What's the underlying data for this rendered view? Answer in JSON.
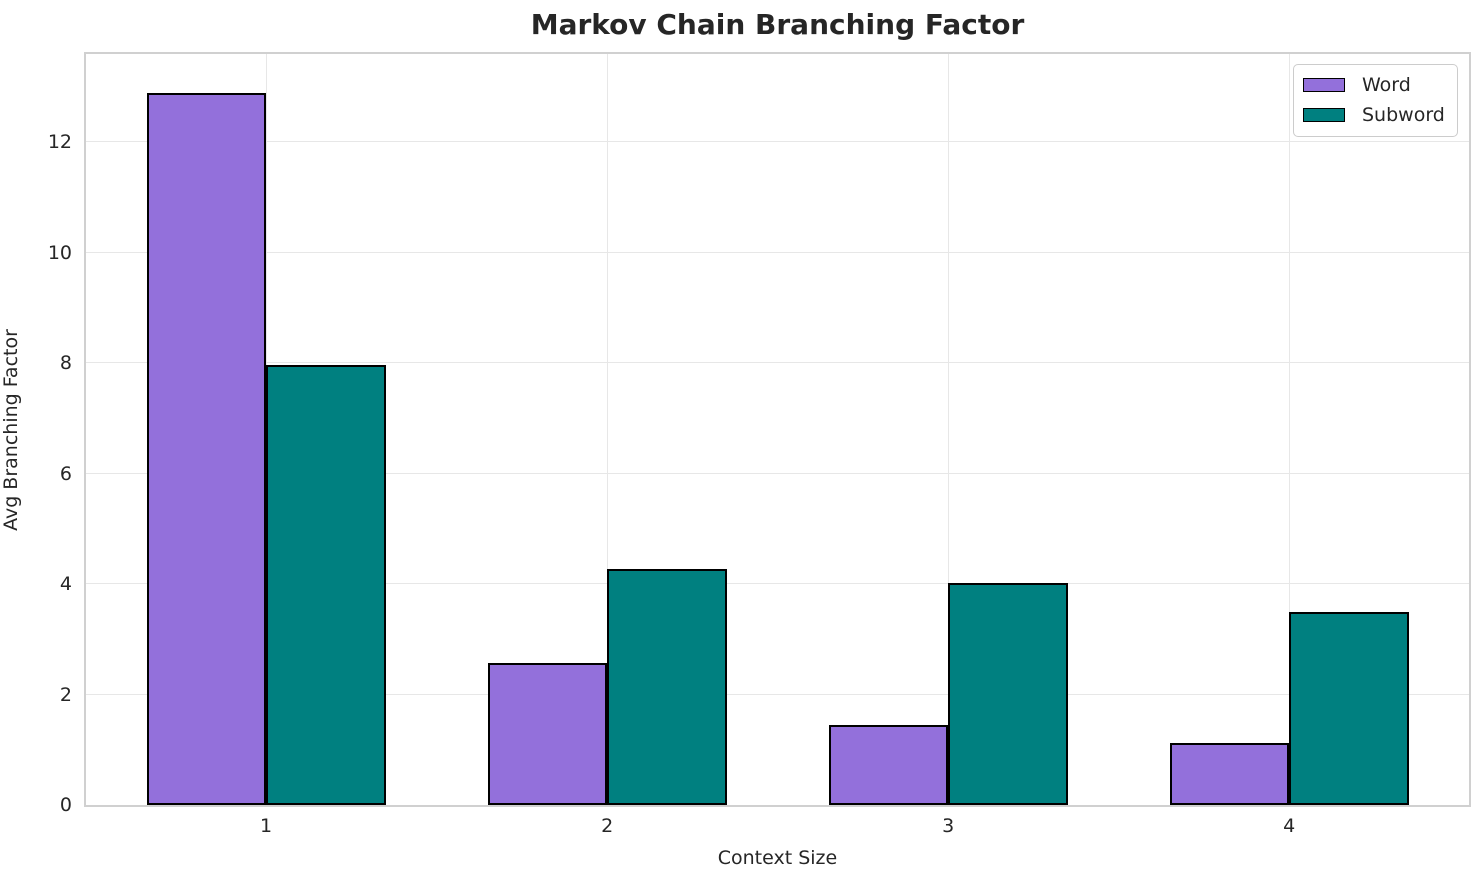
{
  "chart_data": {
    "type": "bar",
    "title": "Markov Chain Branching Factor",
    "xlabel": "Context Size",
    "ylabel": "Avg Branching Factor",
    "categories": [
      "1",
      "2",
      "3",
      "4"
    ],
    "series": [
      {
        "name": "Word",
        "color": "#9370DB",
        "values": [
          12.9,
          2.58,
          1.45,
          1.13
        ]
      },
      {
        "name": "Subword",
        "color": "#008080",
        "values": [
          7.97,
          4.28,
          4.02,
          3.5
        ]
      }
    ],
    "bar_edge_color": "#000000",
    "ylim": [
      0,
      13.6
    ],
    "yticks": [
      0,
      2,
      4,
      6,
      8,
      10,
      12
    ],
    "grid": true,
    "legend_position": "upper right",
    "colors": {
      "grid": "#e7e7e7",
      "spine": "#d0d0d0",
      "text": "#262626",
      "background": "#ffffff"
    }
  }
}
